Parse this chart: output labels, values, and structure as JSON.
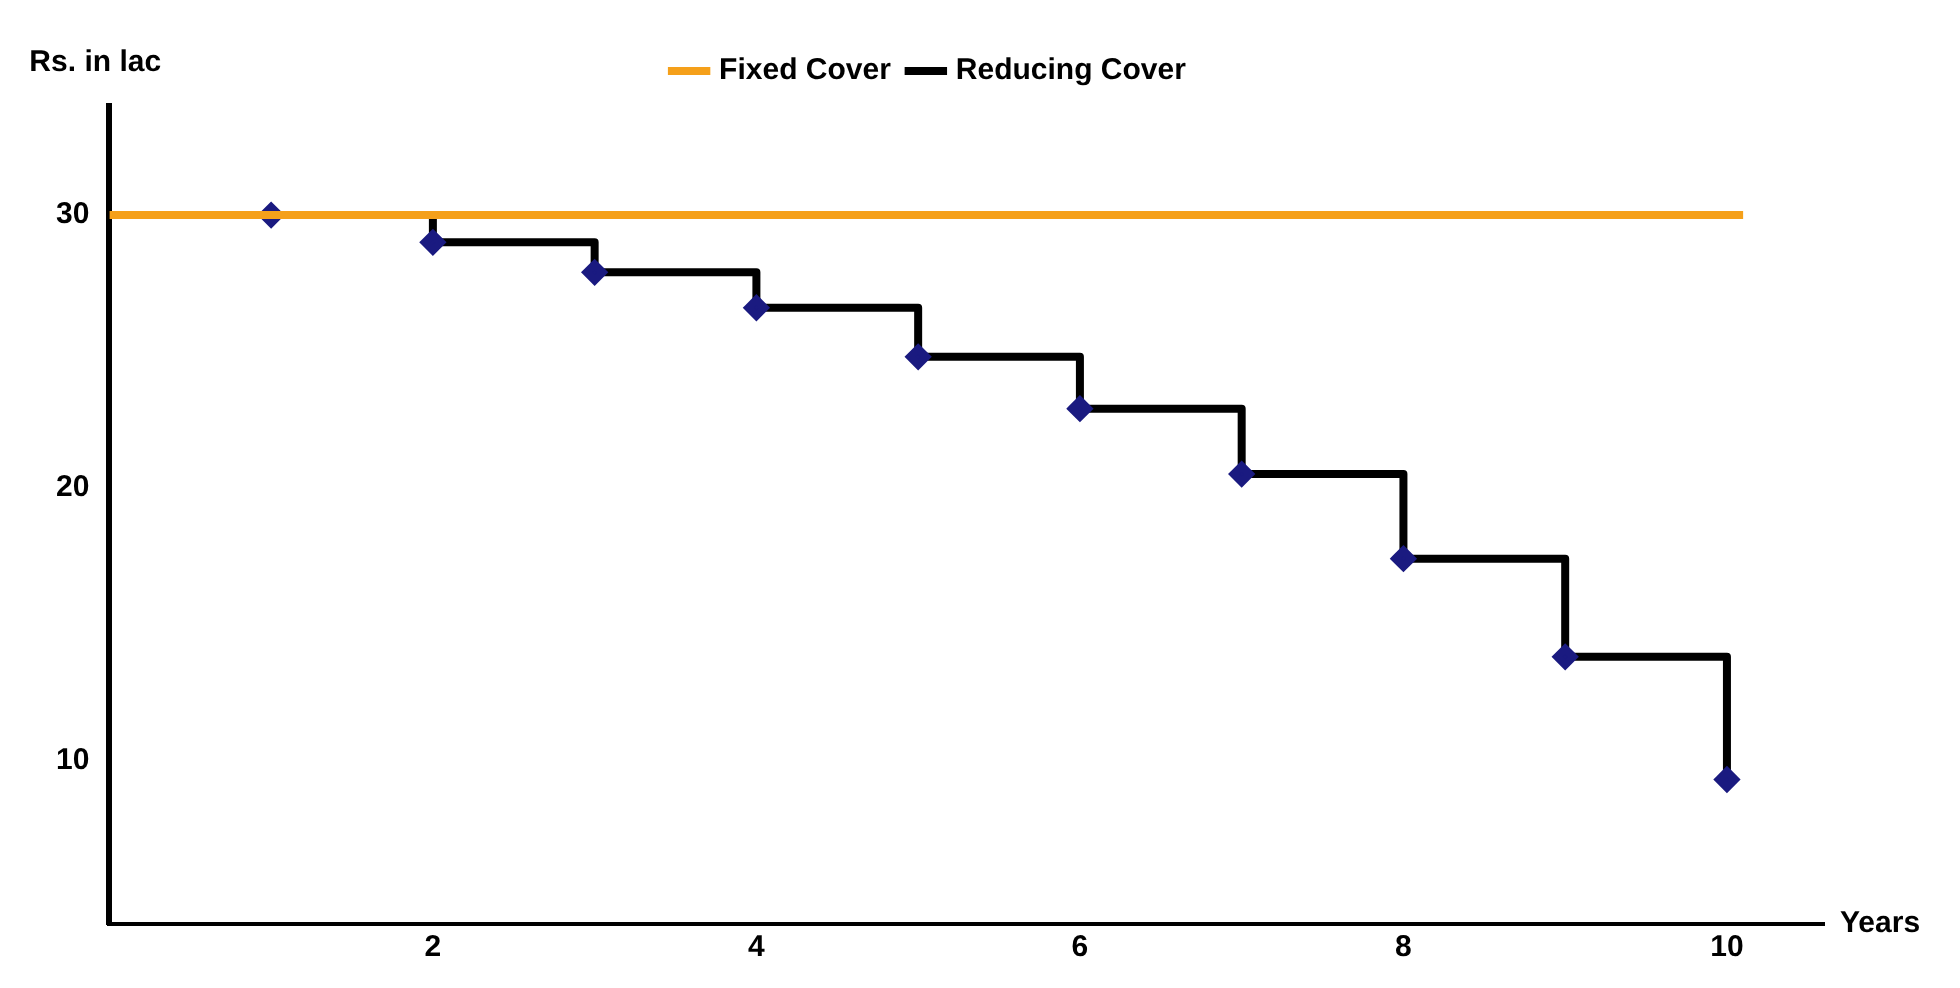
{
  "chart_data": {
    "type": "line",
    "xlabel": "Years",
    "ylabel": "Rs. in lac",
    "xlim": [
      0,
      10.6
    ],
    "xticks": [
      2,
      4,
      6,
      8,
      10
    ],
    "ylim": [
      4,
      34
    ],
    "yticks": [
      10,
      20,
      30
    ],
    "grid": false,
    "legend": "top",
    "series": [
      {
        "name": "Fixed Cover",
        "type": "line",
        "color": "#f5a01a",
        "marker": "none",
        "x": [
          0,
          10.1
        ],
        "values": [
          30,
          30
        ]
      },
      {
        "name": "Reducing Cover",
        "type": "step",
        "color": "#000000",
        "marker": "diamond",
        "x": [
          1,
          2,
          3,
          4,
          5,
          6,
          7,
          8,
          9,
          10
        ],
        "values": [
          30,
          29,
          27.9,
          26.6,
          24.8,
          22.9,
          20.5,
          17.4,
          13.8,
          9.3
        ]
      }
    ]
  }
}
